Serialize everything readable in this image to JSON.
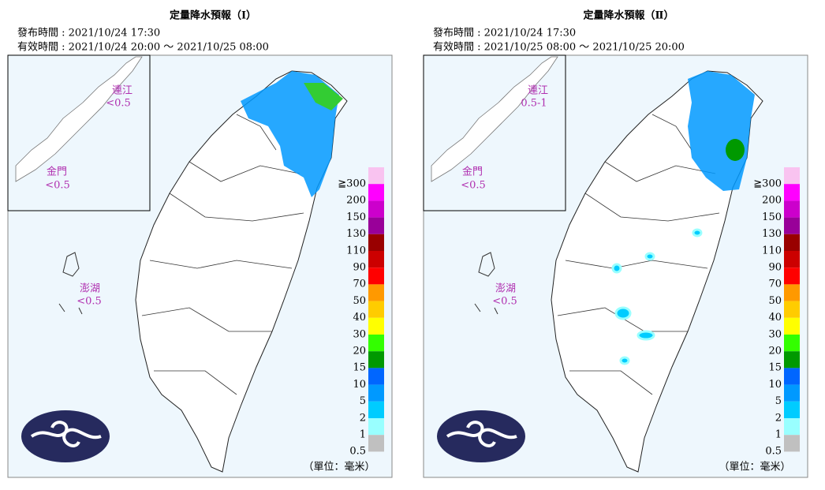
{
  "panels": [
    {
      "title": "定量降水預報（Ⅰ）",
      "issued": "發布時間 : 2021/10/24 17:30",
      "valid": "有效時間 : 2021/10/24 20:00 ～ 2021/10/25 08:00",
      "insets": [
        {
          "name": "連江",
          "value": "<0.5"
        },
        {
          "name": "金門",
          "value": "<0.5"
        },
        {
          "name": "澎湖",
          "value": "<0.5"
        }
      ]
    },
    {
      "title": "定量降水預報（Ⅱ）",
      "issued": "發布時間 : 2021/10/24 17:30",
      "valid": "有效時間 : 2021/10/25 08:00 ～ 2021/10/25 20:00",
      "insets": [
        {
          "name": "連江",
          "value": "0.5-1"
        },
        {
          "name": "金門",
          "value": "<0.5"
        },
        {
          "name": "澎湖",
          "value": "<0.5"
        }
      ]
    }
  ],
  "legend": {
    "labels": [
      "≧300",
      "200",
      "150",
      "130",
      "110",
      "90",
      "70",
      "50",
      "40",
      "30",
      "20",
      "15",
      "10",
      "5",
      "2",
      "1",
      "0.5"
    ],
    "colors": [
      "#f9c3f0",
      "#ff00ff",
      "#cc00cc",
      "#990099",
      "#990000",
      "#cc0000",
      "#ff0000",
      "#ff9900",
      "#ffcc00",
      "#ffff00",
      "#33ff00",
      "#009900",
      "#0066ff",
      "#0099ff",
      "#00ccff",
      "#99ffff",
      "#c0c0c0"
    ],
    "unit": "（單位：毫米）"
  }
}
